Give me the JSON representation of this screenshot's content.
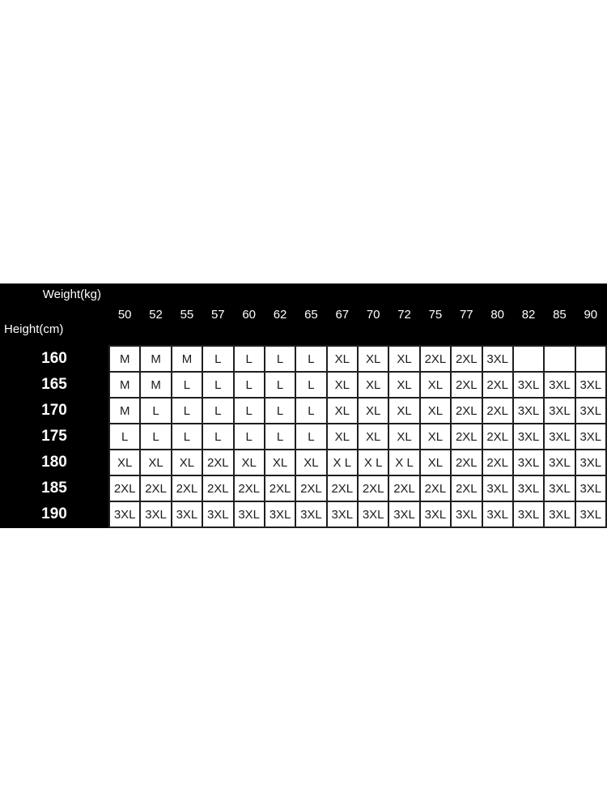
{
  "chart_data": {
    "type": "table",
    "weight_label": "Weight(kg)",
    "height_label": "Height(cm)",
    "columns": [
      "50",
      "52",
      "55",
      "57",
      "60",
      "62",
      "65",
      "67",
      "70",
      "72",
      "75",
      "77",
      "80",
      "82",
      "85",
      "90"
    ],
    "rows": [
      {
        "height": "160",
        "sizes": [
          "M",
          "M",
          "M",
          "L",
          "L",
          "L",
          "L",
          "XL",
          "XL",
          "XL",
          "2XL",
          "2XL",
          "3XL",
          "",
          "",
          ""
        ]
      },
      {
        "height": "165",
        "sizes": [
          "M",
          "M",
          "L",
          "L",
          "L",
          "L",
          "L",
          "XL",
          "XL",
          "XL",
          "XL",
          "2XL",
          "2XL",
          "3XL",
          "3XL",
          "3XL"
        ]
      },
      {
        "height": "170",
        "sizes": [
          "M",
          "L",
          "L",
          "L",
          "L",
          "L",
          "L",
          "XL",
          "XL",
          "XL",
          "XL",
          "2XL",
          "2XL",
          "3XL",
          "3XL",
          "3XL"
        ]
      },
      {
        "height": "175",
        "sizes": [
          "L",
          "L",
          "L",
          "L",
          "L",
          "L",
          "L",
          "XL",
          "XL",
          "XL",
          "XL",
          "2XL",
          "2XL",
          "3XL",
          "3XL",
          "3XL"
        ]
      },
      {
        "height": "180",
        "sizes": [
          "XL",
          "XL",
          "XL",
          "2XL",
          "XL",
          "XL",
          "XL",
          "X L",
          "X L",
          "X L",
          "XL",
          "2XL",
          "2XL",
          "3XL",
          "3XL",
          "3XL"
        ]
      },
      {
        "height": "185",
        "sizes": [
          "2XL",
          "2XL",
          "2XL",
          "2XL",
          "2XL",
          "2XL",
          "2XL",
          "2XL",
          "2XL",
          "2XL",
          "2XL",
          "2XL",
          "3XL",
          "3XL",
          "3XL",
          "3XL"
        ]
      },
      {
        "height": "190",
        "sizes": [
          "3XL",
          "3XL",
          "3XL",
          "3XL",
          "3XL",
          "3XL",
          "3XL",
          "3XL",
          "3XL",
          "3XL",
          "3XL",
          "3XL",
          "3XL",
          "3XL",
          "3XL",
          "3XL"
        ]
      }
    ],
    "layout": {
      "legend_position": "none",
      "grid": "on",
      "header_area": "top-black-band",
      "row_label_column": "left"
    }
  },
  "colors": {
    "band_bg": "#000000",
    "cell_bg": "#ffffff",
    "cell_border": "#1f1f1f",
    "header_text": "#ffffff",
    "cell_text": "#1c1c1c"
  }
}
